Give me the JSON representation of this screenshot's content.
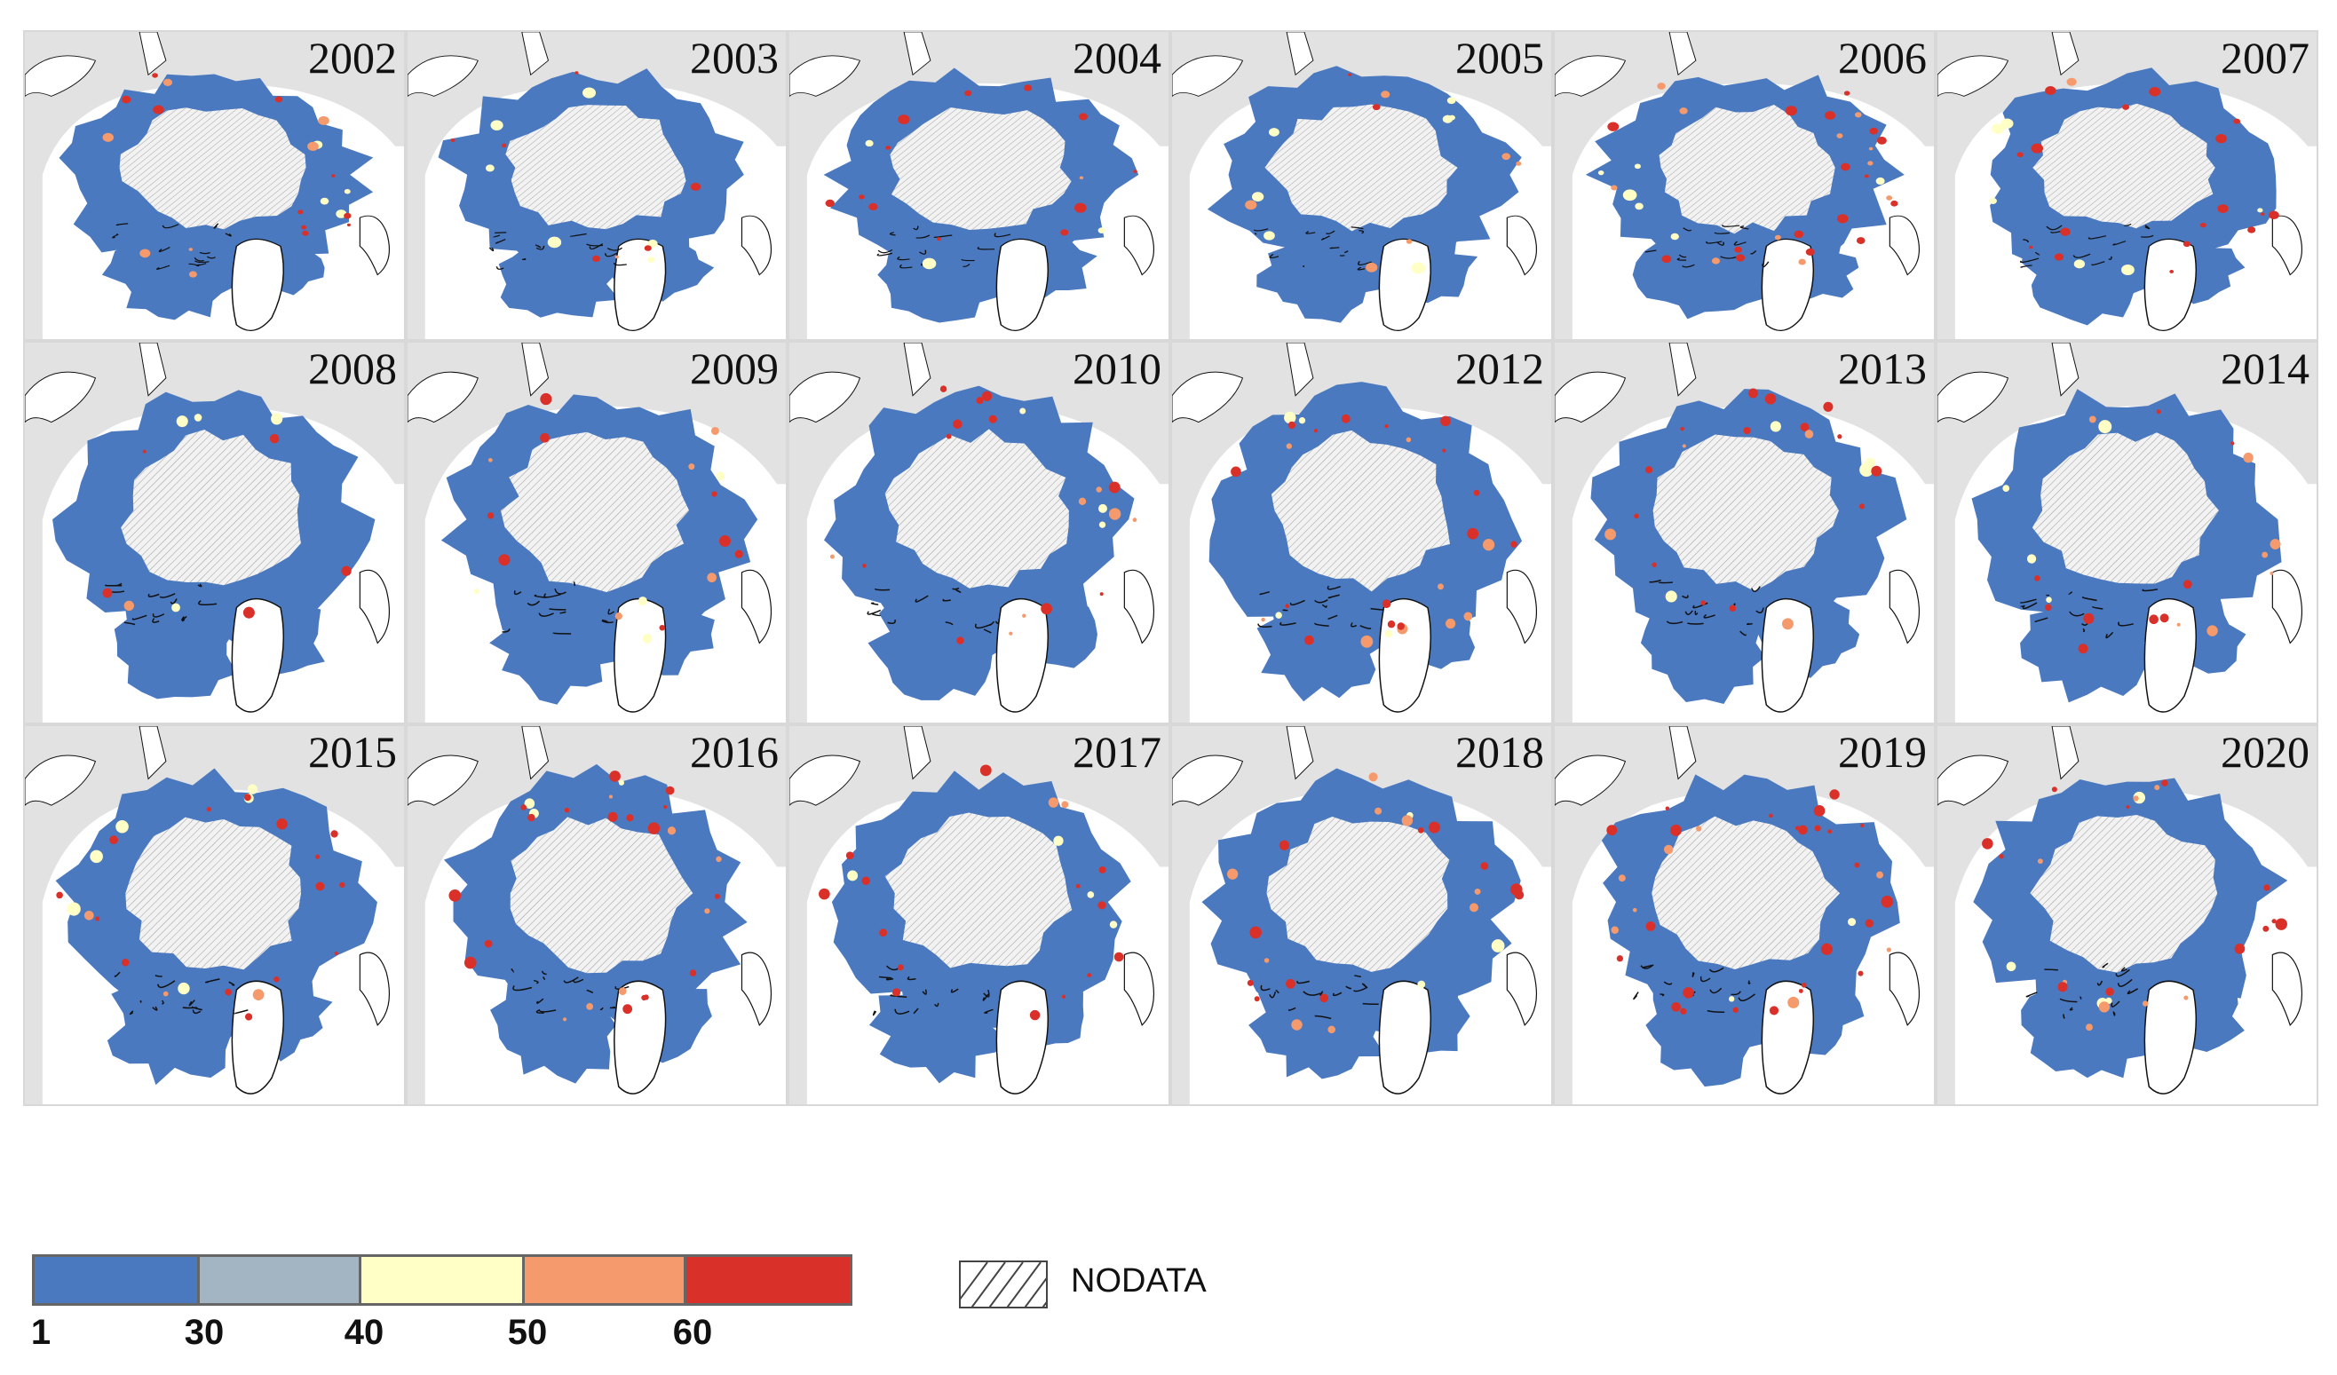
{
  "panels": [
    {
      "year": "2002",
      "red": 0.28,
      "yellow": 0.1,
      "seed": 3
    },
    {
      "year": "2003",
      "red": 0.12,
      "yellow": 0.14,
      "seed": 7
    },
    {
      "year": "2004",
      "red": 0.22,
      "yellow": 0.08,
      "seed": 11
    },
    {
      "year": "2005",
      "red": 0.14,
      "yellow": 0.18,
      "seed": 13
    },
    {
      "year": "2006",
      "red": 0.45,
      "yellow": 0.16,
      "seed": 17
    },
    {
      "year": "2007",
      "red": 0.3,
      "yellow": 0.14,
      "seed": 19
    },
    {
      "year": "2008",
      "red": 0.1,
      "yellow": 0.1,
      "seed": 23
    },
    {
      "year": "2009",
      "red": 0.22,
      "yellow": 0.1,
      "seed": 29
    },
    {
      "year": "2010",
      "red": 0.3,
      "yellow": 0.08,
      "seed": 31
    },
    {
      "year": "2012",
      "red": 0.4,
      "yellow": 0.1,
      "seed": 37
    },
    {
      "year": "2013",
      "red": 0.3,
      "yellow": 0.1,
      "seed": 41
    },
    {
      "year": "2014",
      "red": 0.26,
      "yellow": 0.1,
      "seed": 43
    },
    {
      "year": "2015",
      "red": 0.3,
      "yellow": 0.16,
      "seed": 47
    },
    {
      "year": "2016",
      "red": 0.4,
      "yellow": 0.08,
      "seed": 53
    },
    {
      "year": "2017",
      "red": 0.26,
      "yellow": 0.1,
      "seed": 59
    },
    {
      "year": "2018",
      "red": 0.34,
      "yellow": 0.08,
      "seed": 61
    },
    {
      "year": "2019",
      "red": 0.55,
      "yellow": 0.06,
      "seed": 67
    },
    {
      "year": "2020",
      "red": 0.34,
      "yellow": 0.1,
      "seed": 71
    }
  ],
  "legend": {
    "ticks": [
      "1",
      "30",
      "40",
      "50",
      "60"
    ],
    "colors": [
      "#4a79c0",
      "#a3b4c2",
      "#ffffc6",
      "#f59a6c",
      "#d9312a"
    ],
    "nodata_label": "NODATA"
  },
  "colors": {
    "land": "#e2e2e2",
    "ocean": "#ffffff",
    "hatch": "#9a9a9a",
    "coast": "#111111"
  }
}
